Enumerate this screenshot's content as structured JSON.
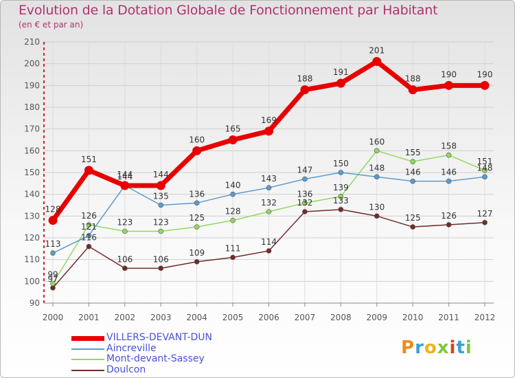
{
  "header": {
    "title": "Evolution de la Dotation Globale de Fonctionnement par Habitant",
    "subtitle": "(en € et par an)"
  },
  "colors": {
    "title": "#b0326f",
    "legend_text": "#4a50d6",
    "axis_labels": "#555555"
  },
  "logo": {
    "text": "Proxiti",
    "colors": [
      "#f08a1c",
      "#3aa0d8",
      "#f0b41c",
      "#7cc83c",
      "#e0401c",
      "#3aa0d8",
      "#7cc83c"
    ]
  },
  "chart_data": {
    "type": "line",
    "title": "Evolution de la Dotation Globale de Fonctionnement par Habitant",
    "subtitle": "(en € et par an)",
    "x": [
      "2000",
      "2001",
      "2002",
      "2003",
      "2004",
      "2005",
      "2006",
      "2007",
      "2008",
      "2009",
      "2010",
      "2011",
      "2012"
    ],
    "ylim": [
      90,
      210
    ],
    "yticks": [
      90,
      100,
      110,
      120,
      130,
      140,
      150,
      160,
      170,
      180,
      190,
      200,
      210
    ],
    "grid": true,
    "legend_position": "bottom-left",
    "series": [
      {
        "name": "VILLERS-DEVANT-DUN",
        "color": "#e80000",
        "values": [
          128,
          151,
          144,
          144,
          160,
          165,
          169,
          188,
          191,
          201,
          188,
          190,
          190
        ]
      },
      {
        "name": "Aincreville",
        "color": "#5b9bd0",
        "values": [
          113,
          121,
          144,
          135,
          136,
          140,
          143,
          147,
          150,
          148,
          146,
          146,
          148
        ]
      },
      {
        "name": "Mont-devant-Sassey",
        "color": "#90d860",
        "values": [
          99,
          126,
          123,
          123,
          125,
          128,
          132,
          136,
          139,
          160,
          155,
          158,
          151
        ]
      },
      {
        "name": "Doulcon",
        "color": "#722a2a",
        "values": [
          97,
          116,
          106,
          106,
          109,
          111,
          114,
          132,
          133,
          130,
          125,
          126,
          127
        ]
      }
    ]
  }
}
